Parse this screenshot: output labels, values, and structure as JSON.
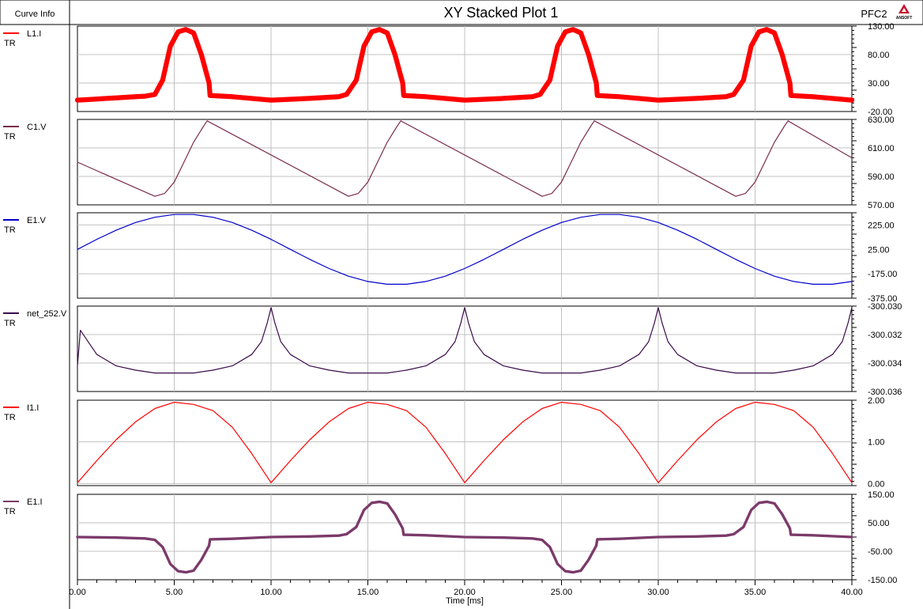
{
  "header": {
    "curve_info": "Curve Info",
    "title": "XY Stacked Plot 1",
    "project": "PFC2",
    "logo_text": "ANSOFT"
  },
  "chart_data": {
    "type": "line",
    "title": "XY Stacked Plot 1",
    "xlabel": "Time [ms]",
    "xlim": [
      0,
      40
    ],
    "x_ticks": [
      "0.00",
      "5.00",
      "10.00",
      "15.00",
      "20.00",
      "25.00",
      "30.00",
      "35.00",
      "40.00"
    ],
    "x_tick_values": [
      0,
      5,
      10,
      15,
      20,
      25,
      30,
      35,
      40
    ],
    "grid": true,
    "panels": [
      {
        "name": "L1.I",
        "sub": "TR",
        "color": "#ff0000",
        "ylim": [
          -20,
          130
        ],
        "y_ticks": [
          "130.00",
          "80.00",
          "30.00",
          "-20.00"
        ],
        "y_tick_values": [
          130,
          80,
          30,
          -20
        ],
        "x": [
          0,
          1,
          2,
          3,
          3.5,
          4,
          4.4,
          4.8,
          5.2,
          5.6,
          6,
          6.4,
          6.8,
          6.85,
          8,
          10,
          12,
          13.5,
          13.9,
          14.4,
          14.8,
          15.2,
          15.6,
          16,
          16.4,
          16.8,
          16.85,
          18,
          20,
          22,
          23.5,
          23.9,
          24.4,
          24.8,
          25.2,
          25.6,
          26,
          26.4,
          26.8,
          26.85,
          28,
          30,
          32,
          33.5,
          33.9,
          34.4,
          34.8,
          35.2,
          35.6,
          36,
          36.4,
          36.8,
          36.85,
          38,
          40
        ],
        "values": [
          0,
          2,
          4,
          6,
          7,
          10,
          35,
          95,
          120,
          124,
          118,
          80,
          30,
          8,
          6,
          0,
          3,
          6,
          10,
          35,
          95,
          120,
          124,
          118,
          80,
          30,
          8,
          6,
          0,
          3,
          6,
          10,
          35,
          95,
          120,
          124,
          118,
          80,
          30,
          8,
          6,
          0,
          3,
          6,
          10,
          35,
          95,
          120,
          124,
          118,
          80,
          30,
          8,
          6,
          0
        ],
        "band": 7
      },
      {
        "name": "C1.V",
        "sub": "TR",
        "color": "#7b2d4e",
        "ylim": [
          570,
          630
        ],
        "y_ticks": [
          "630.00",
          "610.00",
          "590.00",
          "570.00"
        ],
        "y_tick_values": [
          630,
          610,
          590,
          570
        ],
        "x": [
          0,
          4,
          4.5,
          5,
          5.5,
          6,
          6.5,
          6.7,
          14,
          14.5,
          15,
          15.5,
          16,
          16.5,
          16.7,
          24,
          24.5,
          25,
          25.5,
          26,
          26.5,
          26.7,
          34,
          34.5,
          35,
          35.5,
          36,
          36.5,
          36.7,
          40
        ],
        "values": [
          600,
          576,
          578,
          586,
          600,
          614,
          625,
          629,
          576,
          578,
          586,
          600,
          614,
          625,
          629,
          576,
          578,
          586,
          600,
          614,
          625,
          629,
          576,
          578,
          586,
          600,
          614,
          625,
          629,
          603
        ]
      },
      {
        "name": "E1.V",
        "sub": "TR",
        "color": "#0000cc",
        "ylim": [
          -375,
          325
        ],
        "y_ticks": [
          "225.00",
          "25.00",
          "-175.00",
          "-375.00"
        ],
        "y_tick_values": [
          225,
          25,
          -175,
          -375
        ],
        "x": [
          0,
          1,
          2,
          3,
          4,
          5,
          6,
          7,
          8,
          9,
          10,
          11,
          12,
          13,
          14,
          15,
          16,
          17,
          18,
          19,
          20,
          21,
          22,
          23,
          24,
          25,
          26,
          27,
          28,
          29,
          30,
          31,
          32,
          33,
          34,
          35,
          36,
          37,
          38,
          39,
          40
        ],
        "values": [
          25,
          107,
          182,
          245,
          288,
          311,
          311,
          288,
          245,
          182,
          107,
          25,
          -57,
          -132,
          -195,
          -238,
          -261,
          -261,
          -238,
          -195,
          -132,
          -57,
          25,
          107,
          182,
          245,
          288,
          311,
          311,
          288,
          245,
          182,
          107,
          25,
          -57,
          -132,
          -195,
          -238,
          -261,
          -261,
          -238
        ]
      },
      {
        "name": "net_252.V",
        "sub": "TR",
        "color": "#3a0a4a",
        "ylim": [
          -300.036,
          -300.03
        ],
        "y_ticks": [
          "-300.030",
          "-300.032",
          "-300.034",
          "-300.036"
        ],
        "y_tick_values": [
          -300.03,
          -300.032,
          -300.034,
          -300.036
        ],
        "x": [
          0,
          0.15,
          0.4,
          1,
          2,
          3,
          4,
          5,
          6,
          7,
          8,
          9,
          9.5,
          9.8,
          10,
          10.2,
          10.5,
          11,
          12,
          13,
          14,
          15,
          16,
          17,
          18,
          19,
          19.5,
          19.8,
          20,
          20.2,
          20.5,
          21,
          22,
          23,
          24,
          25,
          26,
          27,
          28,
          29,
          29.5,
          29.8,
          30,
          30.2,
          30.5,
          31,
          32,
          33,
          34,
          35,
          36,
          37,
          38,
          39,
          39.5,
          39.8,
          40
        ],
        "values": [
          -300.0342,
          -300.0317,
          -300.0322,
          -300.0334,
          -300.0342,
          -300.0345,
          -300.0347,
          -300.0347,
          -300.0347,
          -300.0345,
          -300.0342,
          -300.0334,
          -300.0325,
          -300.0312,
          -300.0301,
          -300.0312,
          -300.0325,
          -300.0334,
          -300.0342,
          -300.0345,
          -300.0347,
          -300.0347,
          -300.0347,
          -300.0345,
          -300.0342,
          -300.0334,
          -300.0325,
          -300.0312,
          -300.0301,
          -300.0312,
          -300.0325,
          -300.0334,
          -300.0342,
          -300.0345,
          -300.0347,
          -300.0347,
          -300.0347,
          -300.0345,
          -300.0342,
          -300.0334,
          -300.0325,
          -300.0312,
          -300.0301,
          -300.0312,
          -300.0325,
          -300.0334,
          -300.0342,
          -300.0345,
          -300.0347,
          -300.0347,
          -300.0347,
          -300.0345,
          -300.0342,
          -300.0334,
          -300.0325,
          -300.0312,
          -300.0301
        ]
      },
      {
        "name": "I1.I",
        "sub": "TR",
        "color": "#ff0000",
        "ylim": [
          -0.05,
          2
        ],
        "y_ticks": [
          "2.00",
          "1.00",
          "0.00"
        ],
        "y_tick_values": [
          2,
          1,
          0
        ],
        "x": [
          0,
          1,
          2,
          3,
          4,
          5,
          6,
          7,
          8,
          9,
          10,
          11,
          12,
          13,
          14,
          15,
          16,
          17,
          18,
          19,
          20,
          21,
          22,
          23,
          24,
          25,
          26,
          27,
          28,
          29,
          30,
          31,
          32,
          33,
          34,
          35,
          36,
          37,
          38,
          39,
          40
        ],
        "values": [
          0.02,
          0.55,
          1.05,
          1.48,
          1.8,
          1.95,
          1.9,
          1.75,
          1.35,
          0.72,
          0.02,
          0.55,
          1.05,
          1.48,
          1.8,
          1.95,
          1.9,
          1.75,
          1.35,
          0.72,
          0.02,
          0.55,
          1.05,
          1.48,
          1.8,
          1.95,
          1.9,
          1.75,
          1.35,
          0.72,
          0.02,
          0.55,
          1.05,
          1.48,
          1.8,
          1.95,
          1.9,
          1.75,
          1.35,
          0.72,
          0.02
        ]
      },
      {
        "name": "E1.I",
        "sub": "TR",
        "color": "#7b3a6a",
        "ylim": [
          -150,
          150
        ],
        "y_ticks": [
          "150.00",
          "50.00",
          "-50.00",
          "-150.00"
        ],
        "y_tick_values": [
          150,
          50,
          -50,
          -150
        ],
        "x": [
          0,
          2,
          3.5,
          4,
          4.4,
          4.8,
          5.2,
          5.6,
          6,
          6.4,
          6.8,
          6.85,
          8,
          10,
          12,
          13.5,
          13.9,
          14.4,
          14.8,
          15.2,
          15.6,
          16,
          16.4,
          16.8,
          16.85,
          18,
          20,
          22,
          23.5,
          24,
          24.4,
          24.8,
          25.2,
          25.6,
          26,
          26.4,
          26.8,
          26.85,
          28,
          30,
          32,
          33.5,
          33.9,
          34.4,
          34.8,
          35.2,
          35.6,
          36,
          36.4,
          36.8,
          36.85,
          38,
          40
        ],
        "values": [
          0,
          -2,
          -5,
          -10,
          -35,
          -95,
          -120,
          -124,
          -118,
          -80,
          -30,
          -8,
          -6,
          0,
          2,
          5,
          10,
          35,
          95,
          120,
          124,
          118,
          80,
          30,
          8,
          6,
          0,
          -2,
          -5,
          -10,
          -35,
          -95,
          -120,
          -124,
          -118,
          -80,
          -30,
          -8,
          -6,
          0,
          2,
          5,
          10,
          35,
          95,
          120,
          124,
          118,
          80,
          30,
          8,
          6,
          0
        ],
        "band": 6
      }
    ]
  }
}
